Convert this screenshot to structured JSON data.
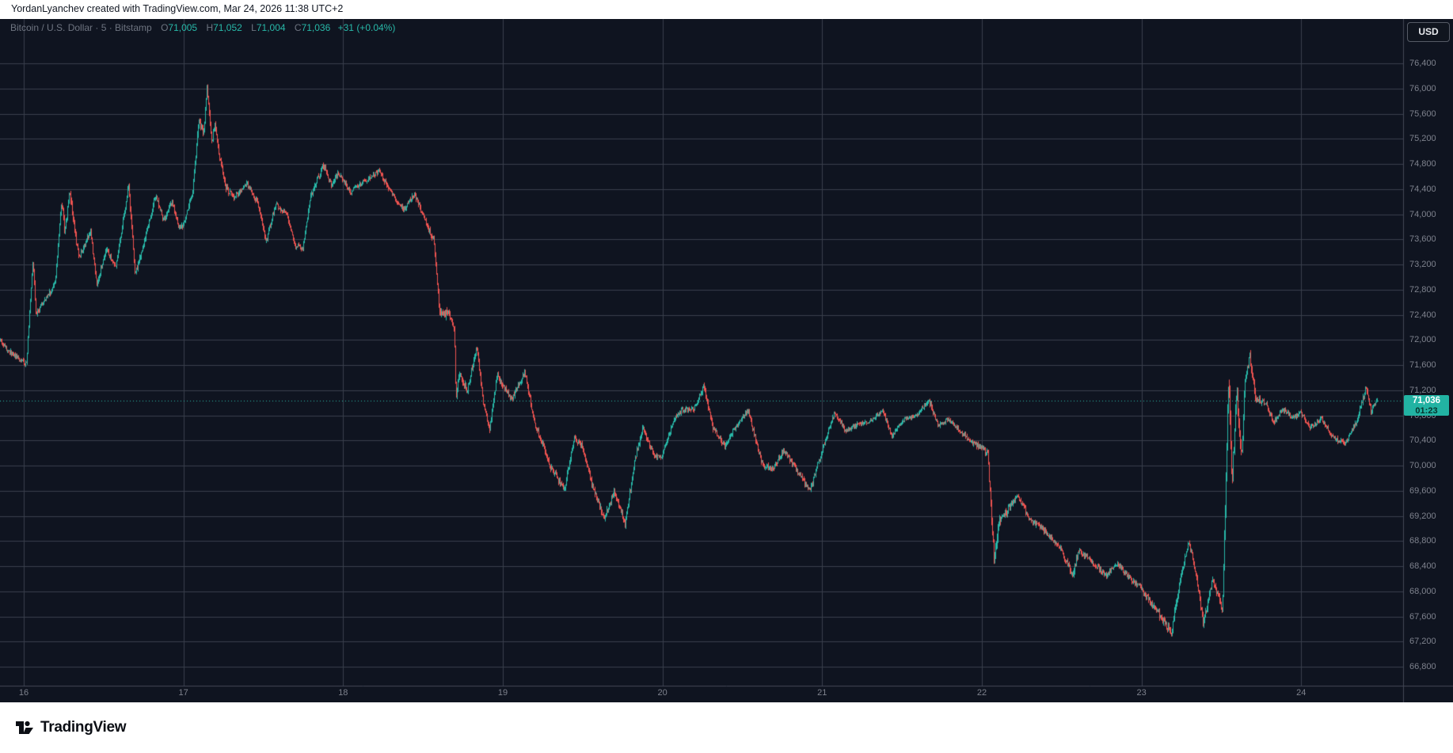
{
  "attribution_bar": {
    "text": "YordanLyanchev created with TradingView.com, Mar 24, 2026 11:38 UTC+2"
  },
  "chart_header": {
    "symbol_line": "Bitcoin / U.S. Dollar · 5 · Bitstamp",
    "ohlc": {
      "open_label": "O",
      "open": "71,005",
      "high_label": "H",
      "high": "71,052",
      "low_label": "L",
      "low": "71,004",
      "close_label": "C",
      "close": "71,036",
      "change": "+31 (+0.04%)"
    }
  },
  "price_axis": {
    "currency_button": "USD",
    "ticks": [
      {
        "value": 76400,
        "label": "76,400"
      },
      {
        "value": 76000,
        "label": "76,000"
      },
      {
        "value": 75600,
        "label": "75,600"
      },
      {
        "value": 75200,
        "label": "75,200"
      },
      {
        "value": 74800,
        "label": "74,800"
      },
      {
        "value": 74400,
        "label": "74,400"
      },
      {
        "value": 74000,
        "label": "74,000"
      },
      {
        "value": 73600,
        "label": "73,600"
      },
      {
        "value": 73200,
        "label": "73,200"
      },
      {
        "value": 72800,
        "label": "72,800"
      },
      {
        "value": 72400,
        "label": "72,400"
      },
      {
        "value": 72000,
        "label": "72,000"
      },
      {
        "value": 71600,
        "label": "71,600"
      },
      {
        "value": 71200,
        "label": "71,200"
      },
      {
        "value": 70800,
        "label": "70,800"
      },
      {
        "value": 70400,
        "label": "70,400"
      },
      {
        "value": 70000,
        "label": "70,000"
      },
      {
        "value": 69600,
        "label": "69,600"
      },
      {
        "value": 69200,
        "label": "69,200"
      },
      {
        "value": 68800,
        "label": "68,800"
      },
      {
        "value": 68400,
        "label": "68,400"
      },
      {
        "value": 68000,
        "label": "68,000"
      },
      {
        "value": 67600,
        "label": "67,600"
      },
      {
        "value": 67200,
        "label": "67,200"
      },
      {
        "value": 66800,
        "label": "66,800"
      }
    ]
  },
  "time_axis": {
    "ticks": [
      {
        "value": 16,
        "label": "16"
      },
      {
        "value": 17,
        "label": "17"
      },
      {
        "value": 18,
        "label": "18"
      },
      {
        "value": 19,
        "label": "19"
      },
      {
        "value": 20,
        "label": "20"
      },
      {
        "value": 21,
        "label": "21"
      },
      {
        "value": 22,
        "label": "22"
      },
      {
        "value": 23,
        "label": "23"
      },
      {
        "value": 24,
        "label": "24"
      }
    ]
  },
  "price_line": {
    "price": "71,036",
    "countdown": "01:23",
    "value": 71036
  },
  "footer": {
    "logo_text": "TradingView"
  },
  "colors": {
    "background": "#0f1420",
    "grid": "#3a3f4d",
    "up_candle": "#28b8a8",
    "down_candle": "#ef5350",
    "price_label_bg": "#22b3a3",
    "dotted_line": "#2abbab",
    "axis_text": "#7e828d",
    "header_text": "#6e7480"
  },
  "chart_data": {
    "type": "candlestick",
    "title": "Bitcoin / U.S. Dollar, 5-minute, Bitstamp",
    "x_unit": "day of March 2026",
    "x_ticks": [
      16,
      17,
      18,
      19,
      20,
      21,
      22,
      23,
      24
    ],
    "x_range": [
      15.85,
      24.64
    ],
    "y_ticks": [
      66800,
      67200,
      67600,
      68000,
      68400,
      68800,
      69200,
      69600,
      70000,
      70400,
      70800,
      71200,
      71600,
      72000,
      72400,
      72800,
      73200,
      73600,
      74000,
      74400,
      74800,
      75200,
      75600,
      76000,
      76400
    ],
    "y_range_approx": [
      66420,
      77060
    ],
    "grid": true,
    "legend_position": "none",
    "last_price": 71036,
    "session_high": 76020,
    "session_low": 67250,
    "waypoints_format": [
      "day_time",
      "price_usd",
      "typical_candle_range_usd"
    ],
    "waypoints": [
      [
        15.85,
        72000,
        80
      ],
      [
        15.9,
        71850,
        70
      ],
      [
        16.02,
        71610,
        70
      ],
      [
        16.06,
        73280,
        95
      ],
      [
        16.08,
        72430,
        85
      ],
      [
        16.13,
        72600,
        70
      ],
      [
        16.2,
        72900,
        80
      ],
      [
        16.24,
        74250,
        110
      ],
      [
        16.26,
        73700,
        100
      ],
      [
        16.29,
        74380,
        110
      ],
      [
        16.33,
        73580,
        90
      ],
      [
        16.35,
        73300,
        85
      ],
      [
        16.42,
        73750,
        90
      ],
      [
        16.46,
        72880,
        85
      ],
      [
        16.52,
        73450,
        90
      ],
      [
        16.58,
        73150,
        80
      ],
      [
        16.66,
        74480,
        100
      ],
      [
        16.7,
        73020,
        95
      ],
      [
        16.76,
        73600,
        85
      ],
      [
        16.83,
        74300,
        90
      ],
      [
        16.88,
        73900,
        80
      ],
      [
        16.93,
        74200,
        80
      ],
      [
        16.97,
        73820,
        75
      ],
      [
        17.0,
        73800,
        75
      ],
      [
        17.06,
        74350,
        90
      ],
      [
        17.1,
        75500,
        110
      ],
      [
        17.13,
        75280,
        100
      ],
      [
        17.15,
        76010,
        110
      ],
      [
        17.18,
        75150,
        100
      ],
      [
        17.2,
        75420,
        90
      ],
      [
        17.23,
        74900,
        95
      ],
      [
        17.27,
        74420,
        90
      ],
      [
        17.32,
        74250,
        80
      ],
      [
        17.4,
        74500,
        80
      ],
      [
        17.47,
        74150,
        80
      ],
      [
        17.52,
        73560,
        90
      ],
      [
        17.58,
        74150,
        80
      ],
      [
        17.65,
        74000,
        75
      ],
      [
        17.7,
        73500,
        80
      ],
      [
        17.75,
        73440,
        80
      ],
      [
        17.8,
        74300,
        90
      ],
      [
        17.88,
        74780,
        90
      ],
      [
        17.93,
        74450,
        80
      ],
      [
        17.97,
        74650,
        75
      ],
      [
        18.0,
        74550,
        70
      ],
      [
        18.05,
        74350,
        70
      ],
      [
        18.12,
        74500,
        70
      ],
      [
        18.23,
        74680,
        80
      ],
      [
        18.3,
        74350,
        80
      ],
      [
        18.38,
        74070,
        80
      ],
      [
        18.45,
        74320,
        75
      ],
      [
        18.53,
        73800,
        85
      ],
      [
        18.57,
        73600,
        95
      ],
      [
        18.61,
        72350,
        140
      ],
      [
        18.66,
        72450,
        100
      ],
      [
        18.7,
        72200,
        110
      ],
      [
        18.71,
        71100,
        150
      ],
      [
        18.73,
        71450,
        110
      ],
      [
        18.78,
        71200,
        95
      ],
      [
        18.84,
        71900,
        95
      ],
      [
        18.88,
        71000,
        95
      ],
      [
        18.92,
        70580,
        95
      ],
      [
        18.97,
        71450,
        90
      ],
      [
        19.0,
        71300,
        85
      ],
      [
        19.06,
        71050,
        85
      ],
      [
        19.14,
        71500,
        90
      ],
      [
        19.2,
        70700,
        95
      ],
      [
        19.3,
        70000,
        100
      ],
      [
        19.39,
        69600,
        110
      ],
      [
        19.45,
        70450,
        95
      ],
      [
        19.5,
        70300,
        85
      ],
      [
        19.56,
        69700,
        95
      ],
      [
        19.64,
        69150,
        105
      ],
      [
        19.7,
        69600,
        95
      ],
      [
        19.77,
        69050,
        105
      ],
      [
        19.83,
        70100,
        95
      ],
      [
        19.88,
        70600,
        85
      ],
      [
        19.95,
        70150,
        80
      ],
      [
        20.0,
        70150,
        75
      ],
      [
        20.07,
        70700,
        80
      ],
      [
        20.12,
        70880,
        75
      ],
      [
        20.2,
        70900,
        70
      ],
      [
        20.26,
        71250,
        95
      ],
      [
        20.32,
        70600,
        85
      ],
      [
        20.39,
        70300,
        80
      ],
      [
        20.48,
        70700,
        75
      ],
      [
        20.54,
        70870,
        70
      ],
      [
        20.63,
        70000,
        90
      ],
      [
        20.7,
        69950,
        85
      ],
      [
        20.76,
        70250,
        75
      ],
      [
        20.85,
        69900,
        85
      ],
      [
        20.93,
        69600,
        90
      ],
      [
        20.97,
        70000,
        80
      ],
      [
        21.0,
        70200,
        75
      ],
      [
        21.08,
        70850,
        80
      ],
      [
        21.15,
        70550,
        70
      ],
      [
        21.22,
        70650,
        65
      ],
      [
        21.3,
        70700,
        60
      ],
      [
        21.38,
        70880,
        65
      ],
      [
        21.44,
        70480,
        70
      ],
      [
        21.52,
        70750,
        60
      ],
      [
        21.6,
        70800,
        60
      ],
      [
        21.67,
        71050,
        90
      ],
      [
        21.73,
        70620,
        75
      ],
      [
        21.79,
        70740,
        60
      ],
      [
        21.87,
        70540,
        70
      ],
      [
        21.95,
        70350,
        70
      ],
      [
        22.0,
        70280,
        85
      ],
      [
        22.04,
        70200,
        95
      ],
      [
        22.08,
        68500,
        210
      ],
      [
        22.11,
        69100,
        130
      ],
      [
        22.18,
        69350,
        95
      ],
      [
        22.23,
        69520,
        85
      ],
      [
        22.3,
        69150,
        85
      ],
      [
        22.38,
        69000,
        80
      ],
      [
        22.49,
        68700,
        85
      ],
      [
        22.57,
        68250,
        115
      ],
      [
        22.61,
        68650,
        85
      ],
      [
        22.7,
        68450,
        80
      ],
      [
        22.78,
        68250,
        80
      ],
      [
        22.85,
        68450,
        75
      ],
      [
        22.93,
        68200,
        80
      ],
      [
        23.0,
        68050,
        85
      ],
      [
        23.08,
        67750,
        95
      ],
      [
        23.19,
        67350,
        115
      ],
      [
        23.25,
        68250,
        105
      ],
      [
        23.3,
        68800,
        95
      ],
      [
        23.35,
        68200,
        95
      ],
      [
        23.39,
        67480,
        125
      ],
      [
        23.45,
        68200,
        95
      ],
      [
        23.51,
        67700,
        110
      ],
      [
        23.55,
        71450,
        380
      ],
      [
        23.57,
        69750,
        280
      ],
      [
        23.6,
        71150,
        200
      ],
      [
        23.63,
        70100,
        170
      ],
      [
        23.65,
        71300,
        150
      ],
      [
        23.68,
        71750,
        130
      ],
      [
        23.72,
        71050,
        105
      ],
      [
        23.78,
        71000,
        85
      ],
      [
        23.83,
        70700,
        80
      ],
      [
        23.89,
        70900,
        70
      ],
      [
        23.95,
        70750,
        70
      ],
      [
        24.0,
        70850,
        70
      ],
      [
        24.06,
        70600,
        70
      ],
      [
        24.13,
        70750,
        65
      ],
      [
        24.2,
        70450,
        70
      ],
      [
        24.28,
        70350,
        70
      ],
      [
        24.35,
        70700,
        75
      ],
      [
        24.41,
        71250,
        95
      ],
      [
        24.44,
        70850,
        75
      ],
      [
        24.475,
        71036,
        60
      ]
    ]
  }
}
